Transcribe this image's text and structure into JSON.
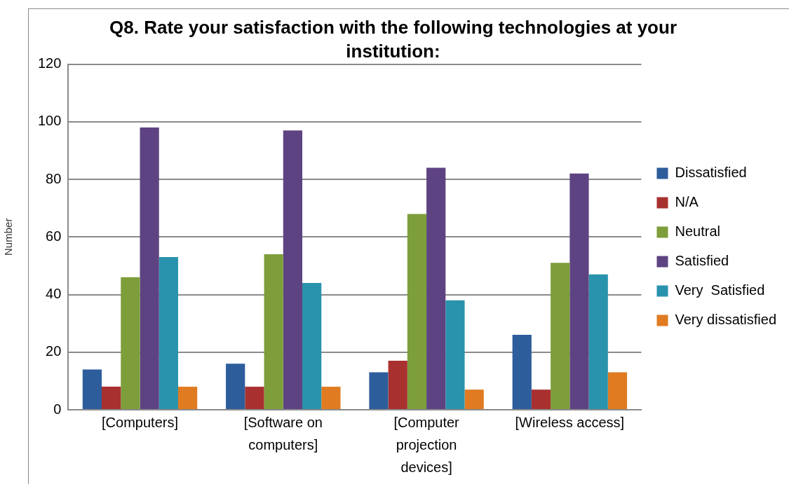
{
  "chart_data": {
    "type": "bar",
    "title": "Q8. Rate your satisfaction with the following technologies at your institution:",
    "ylabel": "Number",
    "categories": [
      "[Computers]",
      "[Software on computers]",
      "[Computer projection devices]",
      "[Wireless access]"
    ],
    "series": [
      {
        "name": "Dissatisfied",
        "color": "#2e5d9c",
        "values": [
          14,
          16,
          13,
          26
        ]
      },
      {
        "name": "N/A",
        "color": "#a8302e",
        "values": [
          8,
          8,
          17,
          7
        ]
      },
      {
        "name": "Neutral",
        "color": "#7d9e3a",
        "values": [
          46,
          54,
          68,
          51
        ]
      },
      {
        "name": "Satisfied",
        "color": "#5e4382",
        "values": [
          98,
          97,
          84,
          82
        ]
      },
      {
        "name": "Very  Satisfied",
        "color": "#2993ad",
        "values": [
          53,
          44,
          38,
          47
        ]
      },
      {
        "name": "Very dissatisfied",
        "color": "#e07b22",
        "values": [
          8,
          8,
          7,
          13
        ]
      }
    ],
    "ylim": [
      0,
      120
    ],
    "yticks": [
      0,
      20,
      40,
      60,
      80,
      100,
      120
    ],
    "grid": "y",
    "legend": "right"
  }
}
